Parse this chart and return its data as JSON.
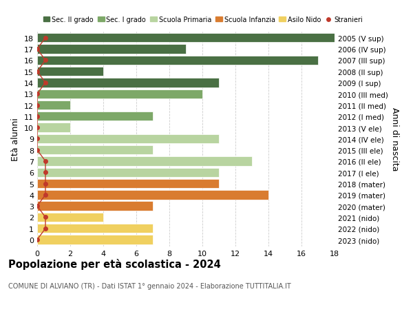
{
  "ages": [
    18,
    17,
    16,
    15,
    14,
    13,
    12,
    11,
    10,
    9,
    8,
    7,
    6,
    5,
    4,
    3,
    2,
    1,
    0
  ],
  "values": [
    18,
    9,
    17,
    4,
    11,
    10,
    2,
    7,
    2,
    11,
    7,
    13,
    11,
    11,
    14,
    7,
    4,
    7,
    7
  ],
  "stranieri_vals": [
    1,
    0,
    1,
    0,
    1,
    0,
    0,
    0,
    0,
    0,
    0,
    1,
    1,
    1,
    1,
    0,
    1,
    1,
    0
  ],
  "right_labels": [
    "2005 (V sup)",
    "2006 (IV sup)",
    "2007 (III sup)",
    "2008 (II sup)",
    "2009 (I sup)",
    "2010 (III med)",
    "2011 (II med)",
    "2012 (I med)",
    "2013 (V ele)",
    "2014 (IV ele)",
    "2015 (III ele)",
    "2016 (II ele)",
    "2017 (I ele)",
    "2018 (mater)",
    "2019 (mater)",
    "2020 (mater)",
    "2021 (nido)",
    "2022 (nido)",
    "2023 (nido)"
  ],
  "colors": [
    "#4a7044",
    "#4a7044",
    "#4a7044",
    "#4a7044",
    "#4a7044",
    "#7da868",
    "#7da868",
    "#7da868",
    "#b8d4a0",
    "#b8d4a0",
    "#b8d4a0",
    "#b8d4a0",
    "#b8d4a0",
    "#d97c30",
    "#d97c30",
    "#d97c30",
    "#f0d060",
    "#f0d060",
    "#f0d060"
  ],
  "legend_labels": [
    "Sec. II grado",
    "Sec. I grado",
    "Scuola Primaria",
    "Scuola Infanzia",
    "Asilo Nido",
    "Stranieri"
  ],
  "legend_colors": [
    "#4a7044",
    "#7da868",
    "#b8d4a0",
    "#d97c30",
    "#f0d060",
    "#c0392b"
  ],
  "stranieri_color": "#c0392b",
  "title": "Popolazione per età scolastica - 2024",
  "subtitle": "COMUNE DI ALVIANO (TR) - Dati ISTAT 1° gennaio 2024 - Elaborazione TUTTITALIA.IT",
  "ylabel_left": "Età alunni",
  "ylabel_right": "Anni di nascita",
  "xlim": [
    0,
    18
  ],
  "ylim_min": -0.6,
  "ylim_max": 18.6,
  "background_color": "#ffffff",
  "grid_color": "#cccccc"
}
